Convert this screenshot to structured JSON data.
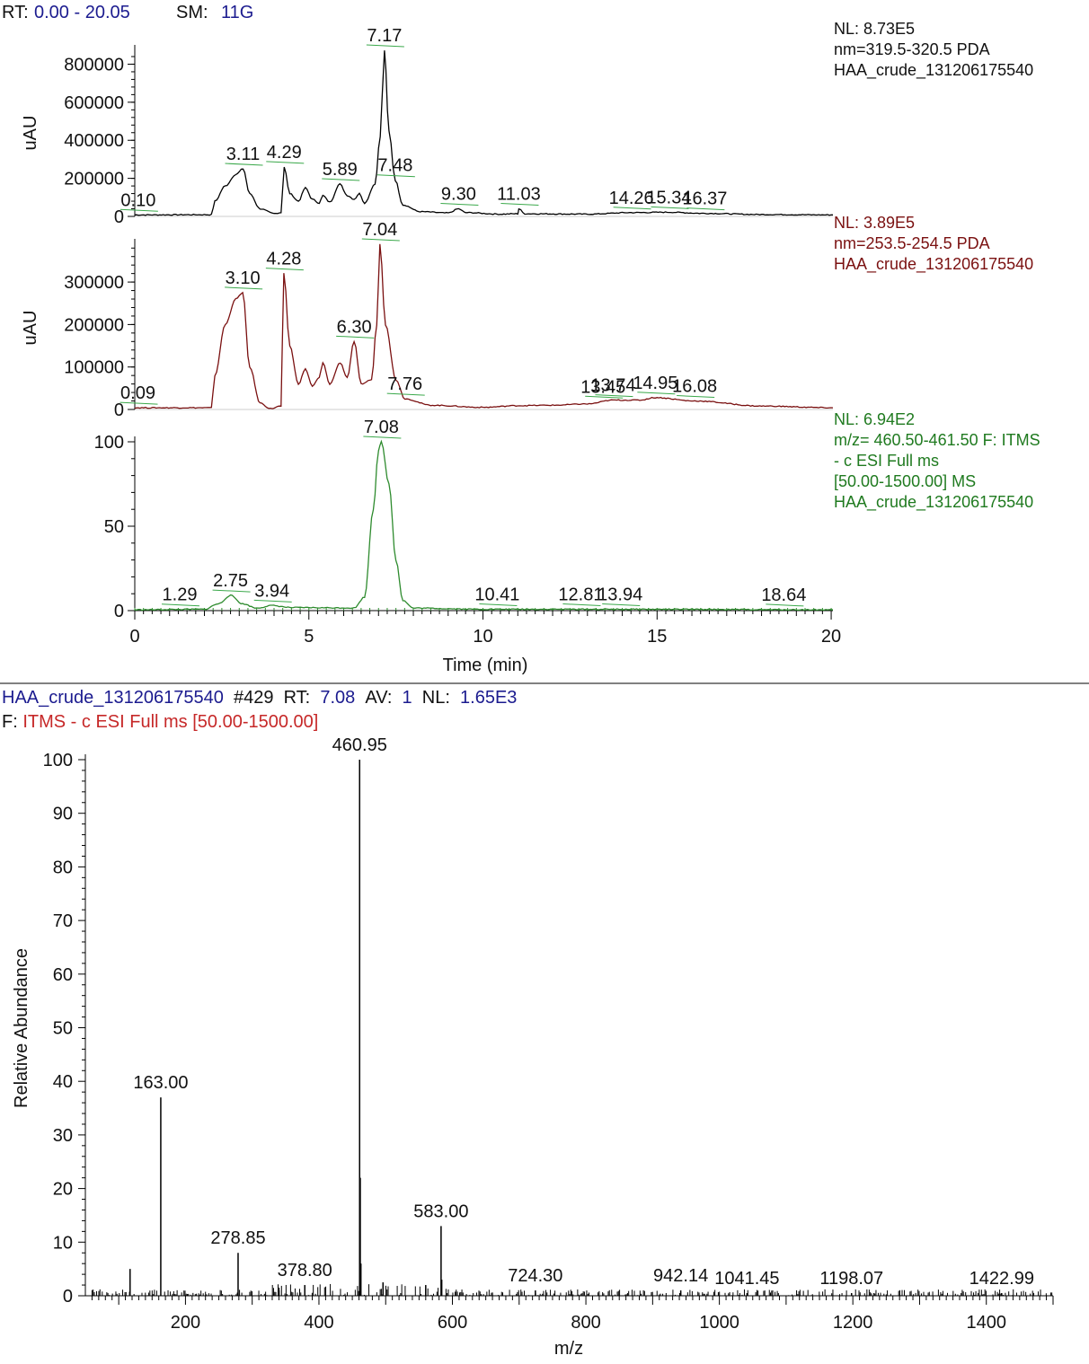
{
  "header": {
    "rt_label": "RT:",
    "rt_value": "0.00 - 20.05",
    "sm_label": "SM:",
    "sm_value": "11G"
  },
  "colors": {
    "trace1": "#000000",
    "trace2": "#7a1010",
    "trace3": "#2e8b2e",
    "annotation_green": "#3aa84a",
    "navy_text": "#1b1b8f",
    "red_text": "#c62828",
    "green_text": "#1f7a1f"
  },
  "chart_data": [
    {
      "type": "line",
      "panel": "chromatogram-pda-320",
      "ylabel": "uAU",
      "ylim": [
        0,
        873000
      ],
      "yticks": [
        0,
        200000,
        400000,
        600000,
        800000
      ],
      "ytick_labels": [
        "0",
        "200000",
        "400000",
        "600000",
        "800000"
      ],
      "xlim": [
        0,
        20.05
      ],
      "info": [
        "NL: 8.73E5",
        "nm=319.5-320.5  PDA",
        "HAA_crude_131206175540"
      ],
      "peaks": [
        {
          "rt": 0.1,
          "label": "0.10"
        },
        {
          "rt": 3.11,
          "label": "3.11"
        },
        {
          "rt": 4.29,
          "label": "4.29"
        },
        {
          "rt": 5.89,
          "label": "5.89"
        },
        {
          "rt": 7.17,
          "label": "7.17"
        },
        {
          "rt": 7.48,
          "label": "7.48"
        },
        {
          "rt": 9.3,
          "label": "9.30"
        },
        {
          "rt": 11.03,
          "label": "11.03"
        },
        {
          "rt": 14.26,
          "label": "14.26"
        },
        {
          "rt": 15.34,
          "label": "15.34"
        },
        {
          "rt": 16.37,
          "label": "16.37"
        }
      ],
      "trace": [
        [
          0,
          8000
        ],
        [
          2.2,
          9000
        ],
        [
          2.3,
          80000
        ],
        [
          2.6,
          160000
        ],
        [
          2.9,
          220000
        ],
        [
          3.11,
          250000
        ],
        [
          3.3,
          120000
        ],
        [
          3.6,
          40000
        ],
        [
          4.0,
          15000
        ],
        [
          4.2,
          20000
        ],
        [
          4.29,
          260000
        ],
        [
          4.45,
          120000
        ],
        [
          4.7,
          80000
        ],
        [
          4.9,
          150000
        ],
        [
          5.1,
          90000
        ],
        [
          5.3,
          70000
        ],
        [
          5.4,
          110000
        ],
        [
          5.6,
          75000
        ],
        [
          5.89,
          170000
        ],
        [
          6.1,
          110000
        ],
        [
          6.3,
          90000
        ],
        [
          6.45,
          120000
        ],
        [
          6.6,
          70000
        ],
        [
          6.9,
          170000
        ],
        [
          7.05,
          420000
        ],
        [
          7.17,
          873000
        ],
        [
          7.3,
          450000
        ],
        [
          7.48,
          190000
        ],
        [
          7.7,
          60000
        ],
        [
          8.2,
          25000
        ],
        [
          9.0,
          18000
        ],
        [
          9.3,
          40000
        ],
        [
          9.5,
          20000
        ],
        [
          10.5,
          12000
        ],
        [
          11.0,
          14000
        ],
        [
          11.03,
          40000
        ],
        [
          11.2,
          14000
        ],
        [
          13.0,
          12000
        ],
        [
          14.26,
          20000
        ],
        [
          15.34,
          22000
        ],
        [
          16.37,
          16000
        ],
        [
          18.0,
          10000
        ],
        [
          20.05,
          8000
        ]
      ]
    },
    {
      "type": "line",
      "panel": "chromatogram-pda-254",
      "ylabel": "uAU",
      "ylim": [
        0,
        389000
      ],
      "yticks": [
        0,
        100000,
        200000,
        300000
      ],
      "ytick_labels": [
        "0",
        "100000",
        "200000",
        "300000"
      ],
      "xlim": [
        0,
        20.05
      ],
      "info": [
        "NL: 3.89E5",
        "nm=253.5-254.5  PDA",
        "HAA_crude_131206175540"
      ],
      "peaks": [
        {
          "rt": 0.09,
          "label": "0.09"
        },
        {
          "rt": 3.1,
          "label": "3.10"
        },
        {
          "rt": 4.28,
          "label": "4.28"
        },
        {
          "rt": 6.3,
          "label": "6.30"
        },
        {
          "rt": 7.04,
          "label": "7.04"
        },
        {
          "rt": 7.76,
          "label": "7.76"
        },
        {
          "rt": 13.45,
          "label": "13.45"
        },
        {
          "rt": 13.74,
          "label": "13.74"
        },
        {
          "rt": 14.95,
          "label": "14.95"
        },
        {
          "rt": 16.08,
          "label": "16.08"
        }
      ],
      "trace": [
        [
          0,
          4000
        ],
        [
          2.2,
          4000
        ],
        [
          2.3,
          80000
        ],
        [
          2.6,
          200000
        ],
        [
          2.9,
          260000
        ],
        [
          3.1,
          275000
        ],
        [
          3.3,
          100000
        ],
        [
          3.6,
          15000
        ],
        [
          3.9,
          2000
        ],
        [
          4.2,
          8000
        ],
        [
          4.28,
          320000
        ],
        [
          4.45,
          150000
        ],
        [
          4.7,
          60000
        ],
        [
          4.9,
          95000
        ],
        [
          5.1,
          55000
        ],
        [
          5.3,
          75000
        ],
        [
          5.4,
          110000
        ],
        [
          5.6,
          60000
        ],
        [
          5.9,
          110000
        ],
        [
          6.1,
          75000
        ],
        [
          6.3,
          160000
        ],
        [
          6.5,
          60000
        ],
        [
          6.8,
          70000
        ],
        [
          6.95,
          200000
        ],
        [
          7.04,
          389000
        ],
        [
          7.2,
          200000
        ],
        [
          7.5,
          70000
        ],
        [
          7.76,
          25000
        ],
        [
          8.5,
          10000
        ],
        [
          10.0,
          5000
        ],
        [
          11.0,
          9000
        ],
        [
          12.0,
          10000
        ],
        [
          13.0,
          13000
        ],
        [
          13.74,
          22000
        ],
        [
          14.5,
          22000
        ],
        [
          14.95,
          28000
        ],
        [
          16.08,
          20000
        ],
        [
          18.0,
          8000
        ],
        [
          20.05,
          4000
        ]
      ]
    },
    {
      "type": "line",
      "panel": "chromatogram-ms-xic",
      "ylabel": "",
      "ylim": [
        0,
        100
      ],
      "yticks": [
        0,
        50,
        100
      ],
      "ytick_labels": [
        "0",
        "50",
        "100"
      ],
      "xlim": [
        0,
        20.05
      ],
      "xticks": [
        0,
        5,
        10,
        15,
        20
      ],
      "xtick_labels": [
        "0",
        "5",
        "10",
        "15",
        "20"
      ],
      "xlabel": "Time (min)",
      "info": [
        "NL: 6.94E2",
        "m/z= 460.50-461.50 F: ITMS",
        "- c ESI Full ms",
        "[50.00-1500.00]  MS",
        "HAA_crude_131206175540"
      ],
      "peaks": [
        {
          "rt": 1.29,
          "label": "1.29"
        },
        {
          "rt": 2.75,
          "label": "2.75"
        },
        {
          "rt": 3.94,
          "label": "3.94"
        },
        {
          "rt": 7.08,
          "label": "7.08"
        },
        {
          "rt": 10.41,
          "label": "10.41"
        },
        {
          "rt": 12.81,
          "label": "12.81"
        },
        {
          "rt": 13.94,
          "label": "13.94"
        },
        {
          "rt": 18.64,
          "label": "18.64"
        }
      ],
      "trace": [
        [
          0,
          0.5
        ],
        [
          2.0,
          0.8
        ],
        [
          2.4,
          4
        ],
        [
          2.75,
          9
        ],
        [
          3.1,
          4
        ],
        [
          3.5,
          1.5
        ],
        [
          3.94,
          3
        ],
        [
          4.5,
          1.8
        ],
        [
          6.3,
          1.6
        ],
        [
          6.6,
          8
        ],
        [
          6.85,
          60
        ],
        [
          7.0,
          95
        ],
        [
          7.08,
          100
        ],
        [
          7.3,
          75
        ],
        [
          7.5,
          30
        ],
        [
          7.7,
          6
        ],
        [
          8.0,
          1.5
        ],
        [
          10.0,
          0.8
        ],
        [
          14.0,
          0.8
        ],
        [
          20.05,
          0.5
        ]
      ]
    },
    {
      "type": "bar",
      "panel": "mass-spectrum",
      "title_line1": "HAA_crude_131206175540 #429  RT: 7.08  AV: 1  NL: 1.65E3",
      "title_line2": "F: ITMS - c ESI Full ms [50.00-1500.00]",
      "xlabel": "m/z",
      "ylabel": "Relative Abundance",
      "xlim": [
        50,
        1500
      ],
      "ylim": [
        0,
        100
      ],
      "xticks": [
        200,
        400,
        600,
        800,
        1000,
        1200,
        1400
      ],
      "xtick_labels": [
        "200",
        "400",
        "600",
        "800",
        "1000",
        "1200",
        "1400"
      ],
      "yticks": [
        0,
        10,
        20,
        30,
        40,
        50,
        60,
        70,
        80,
        90,
        100
      ],
      "ytick_labels": [
        "0",
        "10",
        "20",
        "30",
        "40",
        "50",
        "60",
        "70",
        "80",
        "90",
        "100"
      ],
      "labeled_peaks": [
        {
          "mz": 163.0,
          "label": "163.00",
          "intensity": 37
        },
        {
          "mz": 278.85,
          "label": "278.85",
          "intensity": 8
        },
        {
          "mz": 378.8,
          "label": "378.80",
          "intensity": 2
        },
        {
          "mz": 460.95,
          "label": "460.95",
          "intensity": 100
        },
        {
          "mz": 583.0,
          "label": "583.00",
          "intensity": 13
        },
        {
          "mz": 724.3,
          "label": "724.30",
          "intensity": 1
        },
        {
          "mz": 942.14,
          "label": "942.14",
          "intensity": 1
        },
        {
          "mz": 1041.45,
          "label": "1041.45",
          "intensity": 0.5
        },
        {
          "mz": 1198.07,
          "label": "1198.07",
          "intensity": 0.5
        },
        {
          "mz": 1422.99,
          "label": "1422.99",
          "intensity": 0.5
        }
      ],
      "minor_peaks": [
        {
          "mz": 117,
          "intensity": 5
        },
        {
          "mz": 461.9,
          "intensity": 22
        },
        {
          "mz": 462.9,
          "intensity": 6
        },
        {
          "mz": 584.0,
          "intensity": 3
        },
        {
          "mz": 496,
          "intensity": 2.5
        },
        {
          "mz": 560,
          "intensity": 2
        },
        {
          "mz": 340,
          "intensity": 1.5
        }
      ]
    }
  ]
}
